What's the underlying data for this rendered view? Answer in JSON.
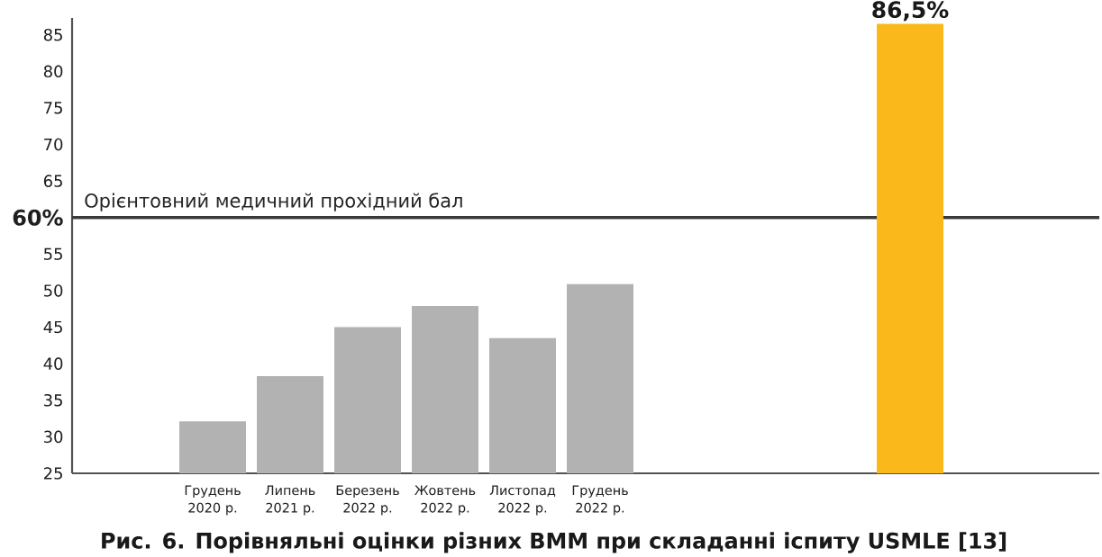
{
  "chart_data": {
    "type": "bar",
    "title": "Рис. 6. Порівняльні оцінки різних ВММ при складанні іспиту USMLE [13]",
    "categories": [
      "Грудень 2020 р.",
      "Липень 2021 р.",
      "Березень 2022 р.",
      "Жовтень 2022 р.",
      "Листопад 2022 р.",
      "Грудень 2022 р.",
      null,
      null,
      null,
      null
    ],
    "values": [
      32.1,
      38.3,
      45.0,
      47.9,
      43.5,
      50.9,
      null,
      null,
      null,
      86.5
    ],
    "colors": [
      "#b2b2b2",
      "#b2b2b2",
      "#b2b2b2",
      "#b2b2b2",
      "#b2b2b2",
      "#b2b2b2",
      null,
      null,
      null,
      "#fbb81a"
    ],
    "value_labels": [
      null,
      null,
      null,
      null,
      null,
      null,
      null,
      null,
      null,
      "86,5%"
    ],
    "ylim": [
      25,
      87.3
    ],
    "yticks": [
      25,
      30,
      35,
      40,
      45,
      50,
      55,
      {
        "value": 60,
        "label": "60%"
      },
      65,
      70,
      75,
      80,
      85
    ],
    "ref_lines": [
      {
        "axis": "y",
        "value": 60,
        "label": "Орієнтовний медичний прохідний бал",
        "color": "#3a3a3a"
      }
    ]
  }
}
